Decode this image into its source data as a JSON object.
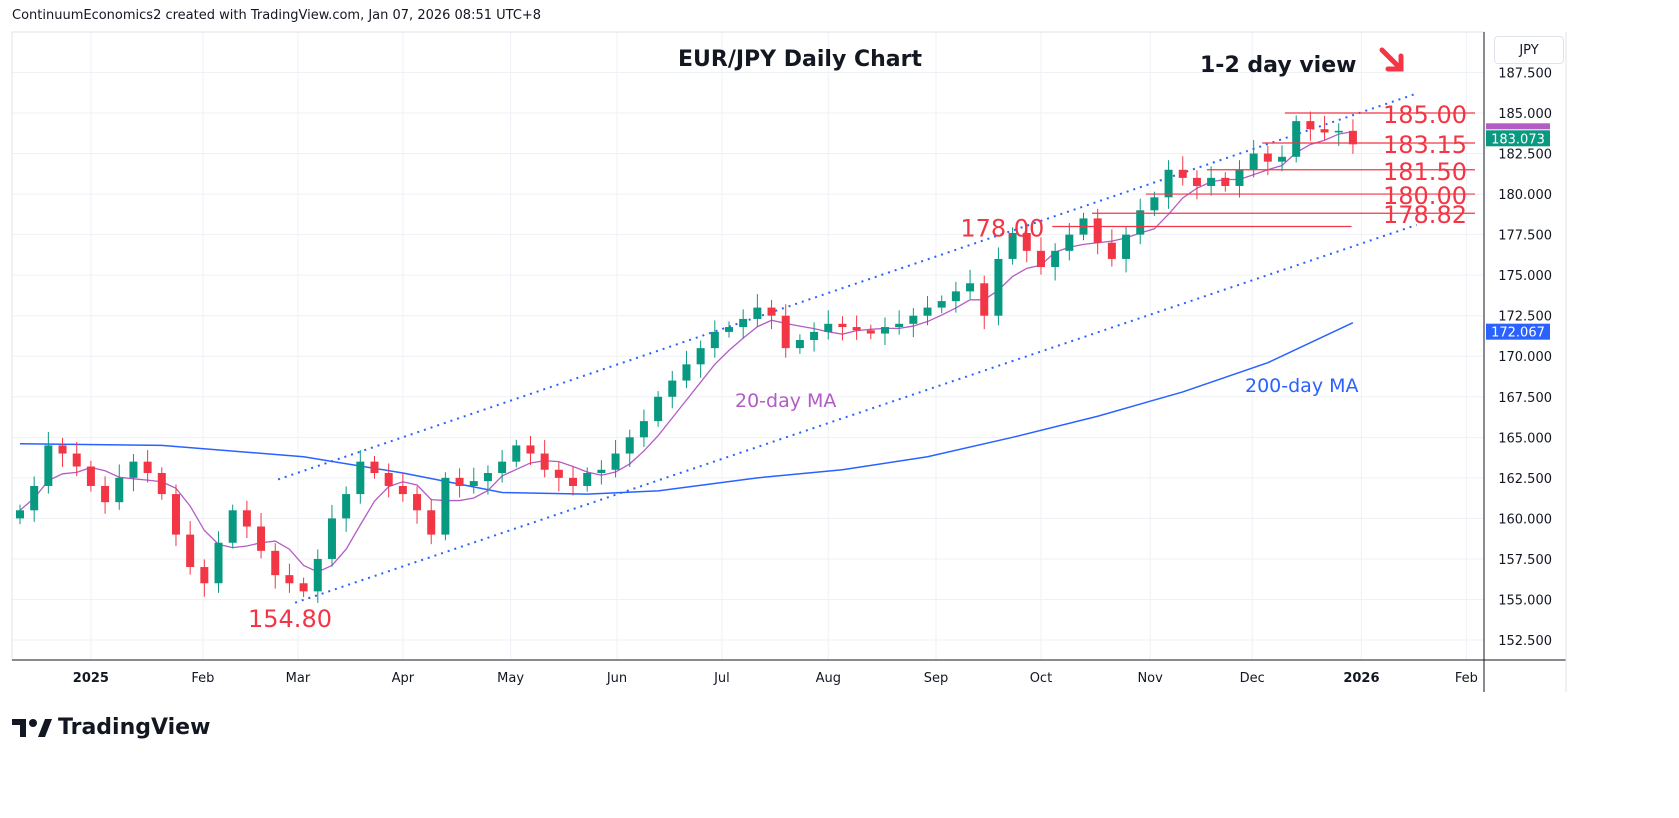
{
  "header": {
    "caption": "ContinuumEconomics2 created with TradingView.com, Jan 07, 2026 08:51 UTC+8"
  },
  "currency_button": "JPY",
  "logo_text": "TradingView",
  "chart_data": {
    "type": "candlestick",
    "title": "EUR/JPY Daily Chart",
    "subtitle": "1-2 day view",
    "ylim": [
      151.5,
      189.2
    ],
    "y_ticks": [
      "152.500",
      "155.000",
      "157.500",
      "160.000",
      "162.500",
      "165.000",
      "167.500",
      "170.000",
      "172.500",
      "175.000",
      "177.500",
      "180.000",
      "182.500",
      "185.000",
      "187.500"
    ],
    "x_ticks": [
      {
        "label": "2025",
        "idx": 5,
        "bold": true
      },
      {
        "label": "Feb",
        "idx": 12.9
      },
      {
        "label": "Mar",
        "idx": 19.6
      },
      {
        "label": "Apr",
        "idx": 27
      },
      {
        "label": "May",
        "idx": 34.6
      },
      {
        "label": "Jun",
        "idx": 42.1
      },
      {
        "label": "Jul",
        "idx": 49.5
      },
      {
        "label": "Aug",
        "idx": 57
      },
      {
        "label": "Sep",
        "idx": 64.6
      },
      {
        "label": "Oct",
        "idx": 72
      },
      {
        "label": "Nov",
        "idx": 79.7
      },
      {
        "label": "Dec",
        "idx": 86.9
      },
      {
        "label": "2026",
        "idx": 94.6,
        "bold": true
      },
      {
        "label": "Feb",
        "idx": 102
      }
    ],
    "closes": [
      160.5,
      162,
      164.5,
      164,
      163.2,
      162,
      161,
      162.5,
      163.5,
      162.8,
      161.5,
      159,
      157,
      156,
      158.5,
      160.5,
      159.5,
      158,
      156.5,
      156,
      155.5,
      157.5,
      160,
      161.5,
      163.5,
      162.8,
      162,
      161.5,
      160.5,
      159,
      162.5,
      162,
      162.3,
      162.8,
      163.5,
      164.5,
      164,
      163,
      162.5,
      162,
      162.8,
      163,
      164,
      165,
      166,
      167.5,
      168.5,
      169.5,
      170.5,
      171.5,
      171.8,
      172.3,
      173,
      172.5,
      170.5,
      171,
      171.5,
      172,
      171.8,
      171.6,
      171.4,
      171.8,
      172,
      172.5,
      173,
      173.4,
      174,
      174.5,
      172.5,
      176,
      177.6,
      176.5,
      175.5,
      176.5,
      177.5,
      178.5,
      177,
      176,
      177.5,
      179,
      179.8,
      181.5,
      181,
      180.5,
      181,
      180.5,
      181.5,
      182.5,
      182,
      182.3,
      184.5,
      184,
      183.8,
      183.9,
      183.07
    ],
    "ma20_period_points": 5,
    "ma200": [
      [
        0,
        164.6
      ],
      [
        10,
        164.5
      ],
      [
        20,
        163.8
      ],
      [
        27,
        162.8
      ],
      [
        34,
        161.6
      ],
      [
        40,
        161.5
      ],
      [
        45,
        161.7
      ],
      [
        52,
        162.5
      ],
      [
        58,
        163
      ],
      [
        64,
        163.8
      ],
      [
        70,
        165
      ],
      [
        76,
        166.3
      ],
      [
        82,
        167.8
      ],
      [
        88,
        169.6
      ],
      [
        94,
        172.07
      ]
    ],
    "channel": {
      "upper": [
        [
          18.2,
          162.4
        ],
        [
          98.5,
          186.2
        ]
      ],
      "lower": [
        [
          19.4,
          154.8
        ],
        [
          98.5,
          178.1
        ]
      ]
    },
    "levels": [
      {
        "value": 185.0,
        "from": 89.2,
        "label": "185.00"
      },
      {
        "value": 183.15,
        "from": 87.6,
        "label": "183.15"
      },
      {
        "value": 181.5,
        "from": 83.7,
        "label": "181.50"
      },
      {
        "value": 180.0,
        "from": 79.4,
        "label": "180.00"
      },
      {
        "value": 178.82,
        "from": 75.6,
        "label": "178.82"
      },
      {
        "value": 178.0,
        "from": 72.8,
        "to": 93.9,
        "label": "178.00",
        "label_left": true
      }
    ],
    "low_label": "154.80",
    "ma20_label": "20-day MA",
    "ma200_label": "200-day MA",
    "last_price": "183.073",
    "ma200_last": "172.067",
    "colors": {
      "up": "#089981",
      "down": "#f23645",
      "ma20": "#b45cc6",
      "ma200": "#2962ff",
      "level": "#f23645",
      "channel": "#2962ff"
    }
  }
}
